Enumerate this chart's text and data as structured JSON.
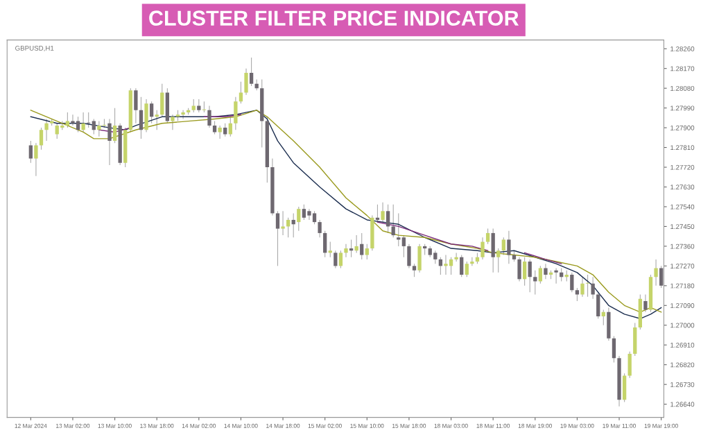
{
  "chart_data": {
    "type": "candlestick",
    "title": "CLUSTER FILTER PRICE INDICATOR",
    "annotations": [
      "GBPUSD,H1"
    ],
    "categories": [
      "12 Mar 2024",
      null,
      null,
      null,
      null,
      null,
      null,
      null,
      "13 Mar 02:00",
      null,
      null,
      null,
      null,
      null,
      null,
      null,
      "13 Mar 10:00",
      null,
      null,
      null,
      null,
      null,
      null,
      null,
      "13 Mar 18:00",
      null,
      null,
      null,
      null,
      null,
      null,
      null,
      "14 Mar 02:00",
      null,
      null,
      null,
      null,
      null,
      null,
      null,
      "14 Mar 10:00",
      null,
      null,
      null,
      null,
      null,
      null,
      null,
      "14 Mar 18:00",
      null,
      null,
      null,
      null,
      null,
      null,
      null,
      "15 Mar 02:00",
      null,
      null,
      null,
      null,
      null,
      null,
      null,
      "15 Mar 10:00",
      null,
      null,
      null,
      null,
      null,
      null,
      null,
      "15 Mar 18:00",
      null,
      null,
      null,
      null,
      null,
      null,
      null,
      "18 Mar 03:00",
      null,
      null,
      null,
      null,
      null,
      null,
      null,
      "18 Mar 11:00",
      null,
      null,
      null,
      null,
      null,
      null,
      null,
      "18 Mar 19:00",
      null,
      null,
      null,
      null,
      null,
      null,
      null,
      "19 Mar 03:00",
      null,
      null,
      null,
      null,
      null,
      null,
      null,
      "19 Mar 11:00",
      null,
      null,
      null,
      null,
      null,
      null,
      null,
      "19 Mar 19:00"
    ],
    "colors": [
      "#6e6870",
      "#c5d46a",
      "#c5d46a",
      "#c5d46a",
      "#c5d46a",
      "#c5d46a",
      "#c5d46a",
      "#c5d46a",
      "#6e6870",
      "#6e6870",
      "#c5d46a",
      "#6e6870",
      "#6e6870",
      "#c5d46a",
      "#c5d46a",
      "#6e6870",
      "#c5d46a",
      "#6e6870",
      "#c5d46a",
      "#c5d46a",
      "#6e6870",
      "#6e6870",
      "#c5d46a",
      "#6e6870",
      "#c5d46a",
      "#c5d46a",
      "#6e6870",
      "#c5d46a",
      "#c5d46a",
      "#c5d46a",
      "#c5d46a",
      "#c5d46a",
      "#6e6870",
      "#c5d46a",
      "#6e6870",
      "#6e6870",
      "#c5d46a",
      "#6e6870",
      "#c5d46a",
      "#c5d46a",
      "#c5d46a",
      "#c5d46a",
      "#6e6870",
      "#6e6870",
      "#6e6870",
      "#6e6870",
      "#6e6870",
      "#6e6870",
      "#c5d46a",
      "#c5d46a",
      "#6e6870",
      "#c5d46a",
      "#6e6870",
      "#6e6870",
      "#6e6870",
      "#6e6870",
      "#6e6870",
      "#c5d46a",
      "#6e6870",
      "#c5d46a",
      "#c5d46a",
      "#6e6870",
      "#c5d46a",
      "#6e6870",
      "#c5d46a",
      "#c5d46a",
      "#6e6870",
      "#c5d46a",
      "#6e6870",
      "#6e6870",
      "#6e6870",
      "#6e6870",
      "#6e6870",
      "#6e6870",
      "#c5d46a",
      "#6e6870",
      "#6e6870",
      "#6e6870",
      "#6e6870",
      "#c5d46a",
      "#c5d46a",
      "#c5d46a",
      "#6e6870",
      "#c5d46a",
      "#c5d46a",
      "#c5d46a",
      "#c5d46a",
      "#c5d46a",
      "#6e6870",
      "#c5d46a",
      "#c5d46a",
      "#6e6870",
      "#6e6870",
      "#6e6870",
      "#c5d46a",
      "#6e6870",
      "#6e6870",
      "#c5d46a",
      "#6e6870",
      "#c5d46a",
      "#6e6870",
      "#6e6870",
      "#c5d46a",
      "#6e6870",
      "#6e6870",
      "#c5d46a",
      "#c5d46a",
      "#6e6870",
      "#6e6870",
      "#c5d46a",
      "#6e6870",
      "#6e6870",
      "#6e6870",
      "#c5d46a",
      "#c5d46a",
      "#c5d46a",
      "#c5d46a",
      "#6e6870",
      "#c5d46a",
      "#c5d46a",
      "#6e6870"
    ],
    "ohlc": [
      [
        1.2782,
        1.2784,
        1.2774,
        1.2776
      ],
      [
        1.2776,
        1.2783,
        1.2768,
        1.2782
      ],
      [
        1.2782,
        1.279,
        1.278,
        1.2789
      ],
      [
        1.2789,
        1.2794,
        1.2784,
        1.2792
      ],
      [
        1.2792,
        1.2794,
        1.2791,
        1.2793
      ],
      [
        1.2787,
        1.2792,
        1.2785,
        1.2791
      ],
      [
        1.279,
        1.2793,
        1.2789,
        1.2791
      ],
      [
        1.2791,
        1.2797,
        1.279,
        1.2793
      ],
      [
        1.2793,
        1.2796,
        1.2791,
        1.2792
      ],
      [
        1.2793,
        1.2795,
        1.2788,
        1.2789
      ],
      [
        1.2789,
        1.2797,
        1.2788,
        1.2792
      ],
      [
        1.2792,
        1.2797,
        1.279,
        1.2792
      ],
      [
        1.2793,
        1.2794,
        1.2787,
        1.2789
      ],
      [
        1.2789,
        1.2793,
        1.2786,
        1.2791
      ],
      [
        1.2791,
        1.2794,
        1.279,
        1.2791
      ],
      [
        1.2792,
        1.2794,
        1.2773,
        1.2784
      ],
      [
        1.2784,
        1.2799,
        1.2783,
        1.2791
      ],
      [
        1.2791,
        1.2792,
        1.2773,
        1.2774
      ],
      [
        1.2774,
        1.279,
        1.2772,
        1.2789
      ],
      [
        1.2789,
        1.2808,
        1.2788,
        1.2807
      ],
      [
        1.2807,
        1.2808,
        1.2792,
        1.2798
      ],
      [
        1.2798,
        1.2804,
        1.2785,
        1.2789
      ],
      [
        1.2789,
        1.2803,
        1.2788,
        1.2801
      ],
      [
        1.2801,
        1.2802,
        1.2792,
        1.2795
      ],
      [
        1.2795,
        1.2798,
        1.2789,
        1.2796
      ],
      [
        1.2796,
        1.281,
        1.2795,
        1.2806
      ],
      [
        1.2806,
        1.2808,
        1.2792,
        1.2793
      ],
      [
        1.2793,
        1.2796,
        1.2789,
        1.2795
      ],
      [
        1.2795,
        1.2798,
        1.2793,
        1.2796
      ],
      [
        1.2796,
        1.2798,
        1.2794,
        1.2797
      ],
      [
        1.2797,
        1.2799,
        1.2796,
        1.2798
      ],
      [
        1.2798,
        1.2803,
        1.2797,
        1.28
      ],
      [
        1.28,
        1.2803,
        1.2797,
        1.2798
      ],
      [
        1.2798,
        1.2802,
        1.2797,
        1.2798
      ],
      [
        1.2798,
        1.28,
        1.279,
        1.2791
      ],
      [
        1.2791,
        1.2793,
        1.2787,
        1.2788
      ],
      [
        1.2788,
        1.2791,
        1.2785,
        1.279
      ],
      [
        1.279,
        1.2792,
        1.2786,
        1.2787
      ],
      [
        1.2787,
        1.2795,
        1.2786,
        1.2792
      ],
      [
        1.2792,
        1.2804,
        1.2789,
        1.2802
      ],
      [
        1.2802,
        1.2811,
        1.2801,
        1.2806
      ],
      [
        1.2806,
        1.2817,
        1.2805,
        1.2815
      ],
      [
        1.2815,
        1.2822,
        1.2809,
        1.281
      ],
      [
        1.281,
        1.2812,
        1.2807,
        1.2808
      ],
      [
        1.2808,
        1.2812,
        1.2781,
        1.2793
      ],
      [
        1.2793,
        1.2795,
        1.2765,
        1.2772
      ],
      [
        1.2772,
        1.2776,
        1.275,
        1.2751
      ],
      [
        1.2751,
        1.2752,
        1.2727,
        1.2744
      ],
      [
        1.2744,
        1.2752,
        1.2741,
        1.2745
      ],
      [
        1.2745,
        1.2749,
        1.274,
        1.2748
      ],
      [
        1.2748,
        1.2751,
        1.274,
        1.2746
      ],
      [
        1.2747,
        1.2754,
        1.2743,
        1.2753
      ],
      [
        1.2753,
        1.2755,
        1.2748,
        1.2749
      ],
      [
        1.2752,
        1.2753,
        1.2748,
        1.275
      ],
      [
        1.2751,
        1.2752,
        1.2746,
        1.2747
      ],
      [
        1.2747,
        1.2748,
        1.274,
        1.2742
      ],
      [
        1.2742,
        1.2743,
        1.2731,
        1.2733
      ],
      [
        1.2733,
        1.2738,
        1.2731,
        1.2734
      ],
      [
        1.2733,
        1.2734,
        1.2726,
        1.2727
      ],
      [
        1.2727,
        1.2734,
        1.2726,
        1.2733
      ],
      [
        1.2733,
        1.2737,
        1.2731,
        1.2735
      ],
      [
        1.2735,
        1.2739,
        1.2731,
        1.2734
      ],
      [
        1.2734,
        1.2741,
        1.2733,
        1.2736
      ],
      [
        1.2737,
        1.2742,
        1.273,
        1.2732
      ],
      [
        1.2732,
        1.2737,
        1.273,
        1.2735
      ],
      [
        1.2735,
        1.275,
        1.2734,
        1.2749
      ],
      [
        1.2749,
        1.2755,
        1.2747,
        1.2748
      ],
      [
        1.2748,
        1.2756,
        1.2747,
        1.2752
      ],
      [
        1.2752,
        1.2755,
        1.2742,
        1.2745
      ],
      [
        1.2745,
        1.2755,
        1.274,
        1.2741
      ],
      [
        1.274,
        1.2751,
        1.2736,
        1.2739
      ],
      [
        1.274,
        1.2741,
        1.2731,
        1.2736
      ],
      [
        1.2736,
        1.2737,
        1.2726,
        1.2727
      ],
      [
        1.2727,
        1.2728,
        1.2722,
        1.2725
      ],
      [
        1.2725,
        1.2737,
        1.2724,
        1.2736
      ],
      [
        1.2736,
        1.2737,
        1.2732,
        1.2735
      ],
      [
        1.2735,
        1.2736,
        1.2731,
        1.2732
      ],
      [
        1.2733,
        1.2734,
        1.2728,
        1.273
      ],
      [
        1.273,
        1.2731,
        1.2723,
        1.2727
      ],
      [
        1.2727,
        1.2732,
        1.2723,
        1.2728
      ],
      [
        1.2727,
        1.2731,
        1.2723,
        1.273
      ],
      [
        1.273,
        1.2733,
        1.2729,
        1.2731
      ],
      [
        1.2731,
        1.2732,
        1.2722,
        1.2723
      ],
      [
        1.2723,
        1.2729,
        1.2722,
        1.2728
      ],
      [
        1.2728,
        1.2731,
        1.2727,
        1.2729
      ],
      [
        1.2729,
        1.2733,
        1.2728,
        1.2731
      ],
      [
        1.2731,
        1.274,
        1.273,
        1.2738
      ],
      [
        1.2738,
        1.2744,
        1.2737,
        1.2742
      ],
      [
        1.2742,
        1.2744,
        1.2724,
        1.2731
      ],
      [
        1.2731,
        1.2735,
        1.2724,
        1.2734
      ],
      [
        1.2734,
        1.274,
        1.2732,
        1.2739
      ],
      [
        1.2739,
        1.2743,
        1.2728,
        1.2732
      ],
      [
        1.2732,
        1.2734,
        1.2729,
        1.273
      ],
      [
        1.273,
        1.2731,
        1.272,
        1.2721
      ],
      [
        1.2721,
        1.2731,
        1.2718,
        1.2729
      ],
      [
        1.2729,
        1.273,
        1.2715,
        1.2722
      ],
      [
        1.2722,
        1.2725,
        1.2714,
        1.272
      ],
      [
        1.272,
        1.2727,
        1.2719,
        1.2726
      ],
      [
        1.2726,
        1.2728,
        1.2721,
        1.2723
      ],
      [
        1.2723,
        1.2725,
        1.2721,
        1.2724
      ],
      [
        1.2725,
        1.2726,
        1.2719,
        1.2724
      ],
      [
        1.2724,
        1.2726,
        1.272,
        1.2722
      ],
      [
        1.2722,
        1.2725,
        1.272,
        1.2723
      ],
      [
        1.2723,
        1.2724,
        1.2715,
        1.2716
      ],
      [
        1.2716,
        1.2717,
        1.2711,
        1.2714
      ],
      [
        1.2714,
        1.2722,
        1.2713,
        1.2719
      ],
      [
        1.2719,
        1.2723,
        1.2713,
        1.2719
      ],
      [
        1.2719,
        1.2722,
        1.2712,
        1.2714
      ],
      [
        1.2714,
        1.2715,
        1.2703,
        1.2704
      ],
      [
        1.2704,
        1.2707,
        1.27,
        1.2706
      ],
      [
        1.2706,
        1.2708,
        1.2693,
        1.2694
      ],
      [
        1.2694,
        1.2695,
        1.2683,
        1.2685
      ],
      [
        1.2685,
        1.2686,
        1.2663,
        1.2666
      ],
      [
        1.2666,
        1.2678,
        1.2665,
        1.2677
      ],
      [
        1.2677,
        1.2688,
        1.2676,
        1.2687
      ],
      [
        1.2687,
        1.2701,
        1.2686,
        1.2699
      ],
      [
        1.2699,
        1.2714,
        1.2698,
        1.2712
      ],
      [
        1.2711,
        1.2714,
        1.2706,
        1.2707
      ],
      [
        1.2707,
        1.2723,
        1.2706,
        1.2722
      ],
      [
        1.2722,
        1.273,
        1.2718,
        1.2726
      ],
      [
        1.2726,
        1.2727,
        1.2717,
        1.2718
      ]
    ],
    "series": [
      {
        "type": "line",
        "color": "#1b2d4f",
        "values": [
          1.2795,
          null,
          null,
          null,
          null,
          1.2792,
          null,
          null,
          null,
          null,
          1.2792,
          null,
          null,
          null,
          null,
          1.279,
          null,
          null,
          1.2789,
          null,
          1.2791,
          null,
          null,
          null,
          null,
          1.2795,
          null,
          null,
          null,
          null,
          1.2795,
          null,
          null,
          null,
          null,
          1.2795,
          null,
          null,
          null,
          1.2796,
          null,
          null,
          null,
          1.2798,
          null,
          1.2794,
          null,
          1.2784,
          null,
          null,
          1.2774,
          null,
          null,
          null,
          null,
          1.2763,
          null,
          null,
          null,
          null,
          1.2753,
          null,
          null,
          null,
          1.2748,
          null,
          null,
          1.2747,
          null,
          null,
          1.2746,
          null,
          null,
          null,
          null,
          1.274,
          null,
          null,
          null,
          null,
          1.2735,
          null,
          null,
          null,
          null,
          1.2734,
          null,
          null,
          1.2733,
          null,
          null,
          null,
          1.2734,
          null,
          null,
          null,
          1.2731,
          null,
          null,
          null,
          1.2728,
          null,
          null,
          null,
          1.2724,
          null,
          null,
          1.2718,
          null,
          null,
          1.2709,
          null,
          null,
          1.2705,
          null,
          null,
          1.2703,
          null,
          1.2705,
          null,
          1.2708
        ]
      },
      {
        "type": "line",
        "color": "#9a9a1e",
        "values": [
          1.2798,
          null,
          null,
          null,
          null,
          1.2793,
          null,
          null,
          null,
          null,
          1.2788,
          null,
          1.2785,
          null,
          null,
          1.2785,
          null,
          null,
          null,
          null,
          1.2789,
          null,
          null,
          null,
          null,
          1.2792,
          null,
          null,
          null,
          null,
          1.2793,
          null,
          null,
          null,
          null,
          1.2794,
          null,
          null,
          null,
          1.2795,
          null,
          null,
          null,
          1.2798,
          null,
          1.2795,
          null,
          null,
          null,
          null,
          1.2784,
          null,
          null,
          null,
          null,
          1.2772,
          null,
          null,
          null,
          null,
          1.2758,
          null,
          null,
          null,
          1.275,
          null,
          null,
          1.2743,
          null,
          null,
          1.2741,
          null,
          null,
          null,
          null,
          1.274,
          null,
          null,
          null,
          null,
          1.2737,
          null,
          null,
          null,
          null,
          1.2735,
          null,
          null,
          1.2733,
          null,
          null,
          null,
          1.2732,
          null,
          null,
          null,
          1.2731,
          null,
          null,
          null,
          1.2729,
          null,
          null,
          null,
          1.2727,
          null,
          null,
          1.2723,
          null,
          null,
          1.2715,
          null,
          null,
          1.2709,
          null,
          null,
          1.2706,
          null,
          1.2708,
          null,
          1.2706
        ]
      },
      {
        "type": "line",
        "color": "#7a2a7a",
        "values": [
          null,
          null,
          null,
          null,
          null,
          null,
          null,
          null,
          null,
          null,
          null,
          null,
          null,
          1.2789,
          null,
          null,
          1.2788,
          null,
          null,
          1.279,
          null,
          null,
          null,
          null,
          null,
          null,
          null,
          null,
          null,
          null,
          null,
          null,
          null,
          null,
          null,
          null,
          null,
          null,
          null,
          null,
          null,
          null,
          null,
          null,
          null,
          null,
          null,
          null,
          null,
          null,
          null,
          null,
          null,
          null,
          null,
          null,
          null,
          null,
          null,
          null,
          null,
          null,
          null,
          null,
          null,
          null,
          null,
          null,
          null,
          null,
          null,
          null,
          null,
          null,
          null,
          null,
          null,
          null,
          null,
          null,
          null,
          null,
          null,
          null,
          null,
          null,
          null,
          null,
          null,
          null,
          null,
          null,
          null,
          null,
          null,
          null,
          null,
          null,
          null,
          null,
          null,
          null,
          null,
          null,
          null,
          null,
          null,
          null,
          null,
          null,
          null,
          null,
          null,
          null,
          null,
          null,
          null,
          null,
          null,
          null,
          null
        ]
      },
      {
        "type": "line",
        "color": "#7a2a7a",
        "values": [
          null,
          null,
          null,
          null,
          null,
          null,
          null,
          null,
          null,
          null,
          null,
          null,
          null,
          null,
          null,
          null,
          null,
          null,
          null,
          null,
          null,
          null,
          null,
          null,
          null,
          null,
          null,
          null,
          null,
          null,
          null,
          null,
          null,
          1.2795,
          null,
          null,
          null,
          1.2795,
          null,
          null,
          1.2796,
          null,
          null,
          null,
          null,
          null,
          null,
          null,
          null,
          null,
          null,
          null,
          null,
          null,
          null,
          null,
          null,
          null,
          null,
          null,
          null,
          null,
          null,
          null,
          null,
          null,
          null,
          null,
          null,
          null,
          null,
          null,
          null,
          null,
          null,
          null,
          null,
          null,
          null,
          null,
          null,
          null,
          null,
          null,
          null,
          null,
          null,
          null,
          null,
          null,
          null,
          null,
          null,
          null,
          null,
          null,
          null,
          null,
          null,
          null,
          null,
          null,
          null,
          null,
          null,
          null,
          null,
          null,
          null,
          null,
          null,
          null,
          null,
          null,
          null,
          null,
          null,
          null,
          null,
          null,
          null
        ]
      },
      {
        "type": "line",
        "color": "#7a2a7a",
        "values": [
          null,
          null,
          null,
          null,
          null,
          null,
          null,
          null,
          null,
          null,
          null,
          null,
          null,
          null,
          null,
          null,
          null,
          null,
          null,
          null,
          null,
          null,
          null,
          null,
          null,
          null,
          null,
          null,
          null,
          null,
          null,
          null,
          null,
          null,
          null,
          null,
          null,
          null,
          null,
          null,
          null,
          null,
          null,
          null,
          null,
          null,
          null,
          null,
          null,
          null,
          null,
          null,
          null,
          null,
          null,
          null,
          null,
          null,
          null,
          null,
          null,
          null,
          null,
          null,
          null,
          null,
          1.2747,
          null,
          null,
          null,
          1.2745,
          null,
          null,
          null,
          null,
          1.2741,
          null,
          null,
          null,
          null,
          1.2737,
          null,
          null,
          null,
          1.2736,
          null,
          null,
          1.2734,
          null,
          null,
          null,
          null,
          null,
          null,
          null,
          null,
          null,
          null,
          null,
          null,
          null,
          null,
          null,
          null,
          null,
          null,
          null,
          null,
          null,
          null,
          null,
          null,
          null,
          null,
          null,
          null,
          null,
          null,
          null,
          null,
          null
        ]
      },
      {
        "type": "line",
        "color": "#7a2a7a",
        "values": [
          null,
          null,
          null,
          null,
          null,
          null,
          null,
          null,
          null,
          null,
          null,
          null,
          null,
          null,
          null,
          null,
          null,
          null,
          null,
          null,
          null,
          null,
          null,
          null,
          null,
          null,
          null,
          null,
          null,
          null,
          null,
          null,
          null,
          null,
          null,
          null,
          null,
          null,
          null,
          null,
          null,
          null,
          null,
          null,
          null,
          null,
          null,
          null,
          null,
          null,
          null,
          null,
          null,
          null,
          null,
          null,
          null,
          null,
          null,
          null,
          null,
          null,
          null,
          null,
          null,
          null,
          null,
          null,
          null,
          null,
          null,
          null,
          null,
          null,
          null,
          null,
          null,
          null,
          null,
          null,
          null,
          null,
          null,
          null,
          null,
          null,
          null,
          null,
          null,
          null,
          null,
          null,
          null,
          null,
          1.2733,
          null,
          null,
          null,
          1.273,
          null,
          null,
          1.2728,
          null,
          null,
          null,
          null,
          null,
          null,
          null,
          null,
          null,
          null,
          null,
          null,
          null,
          null,
          null,
          null,
          null,
          null,
          null
        ]
      }
    ],
    "ylim": [
      1.2658,
      1.283
    ],
    "yticks": [
      {
        "value": 1.2664,
        "label": "1.26640"
      },
      {
        "value": 1.2673,
        "label": "1.26730"
      },
      {
        "value": 1.2682,
        "label": "1.26820"
      },
      {
        "value": 1.2691,
        "label": "1.26910"
      },
      {
        "value": 1.27,
        "label": "1.27000"
      },
      {
        "value": 1.2709,
        "label": "1.27090"
      },
      {
        "value": 1.2718,
        "label": "1.27180"
      },
      {
        "value": 1.2727,
        "label": "1.27270"
      },
      {
        "value": 1.2736,
        "label": "1.27360"
      },
      {
        "value": 1.2745,
        "label": "1.27450"
      },
      {
        "value": 1.2754,
        "label": "1.27540"
      },
      {
        "value": 1.2763,
        "label": "1.27630"
      },
      {
        "value": 1.2772,
        "label": "1.27720"
      },
      {
        "value": 1.2781,
        "label": "1.27810"
      },
      {
        "value": 1.279,
        "label": "1.27900"
      },
      {
        "value": 1.2799,
        "label": "1.27990"
      },
      {
        "value": 1.2808,
        "label": "1.28080"
      },
      {
        "value": 1.2817,
        "label": "1.28170"
      },
      {
        "value": 1.2826,
        "label": "1.28260"
      }
    ],
    "grid": false,
    "legend": false
  }
}
